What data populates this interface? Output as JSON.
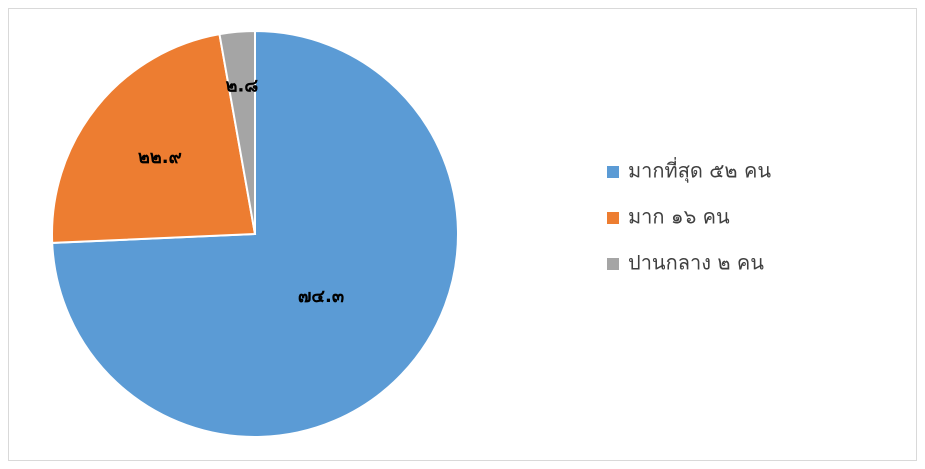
{
  "chart_data": {
    "type": "pie",
    "categories": [
      "มากที่สุด ๕๒ คน",
      "มาก ๑๖ คน",
      "ปานกลาง ๒ คน"
    ],
    "values": [
      74.3,
      22.9,
      2.8
    ],
    "value_labels": [
      "๗๔.๓",
      "๒๒.๙",
      "๒.๘"
    ],
    "colors": [
      "#5b9bd5",
      "#ed7d31",
      "#a5a5a5"
    ],
    "legend": "right"
  }
}
